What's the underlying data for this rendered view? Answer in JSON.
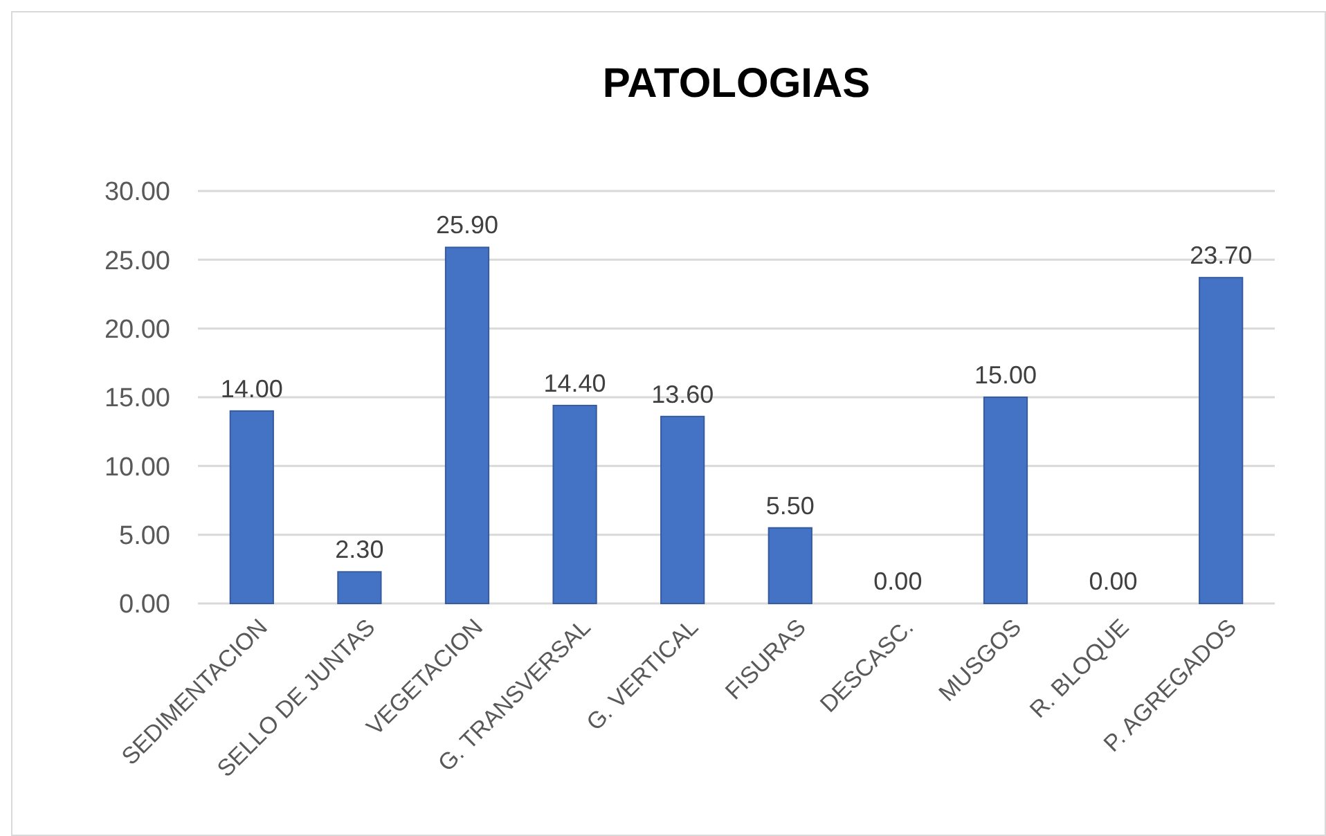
{
  "chart_data": {
    "type": "bar",
    "title": "PATOLOGIAS",
    "categories": [
      "SEDIMENTACION",
      "SELLO DE JUNTAS",
      "VEGETACION",
      "G. TRANSVERSAL",
      "G. VERTICAL",
      "FISURAS",
      "DESCASC.",
      "MUSGOS",
      "R. BLOQUE",
      "P. AGREGADOS"
    ],
    "values": [
      14.0,
      2.3,
      25.9,
      14.4,
      13.6,
      5.5,
      0.0,
      15.0,
      0.0,
      23.7
    ],
    "value_labels": [
      "14.00",
      "2.30",
      "25.90",
      "14.40",
      "13.60",
      "5.50",
      "0.00",
      "15.00",
      "0.00",
      "23.70"
    ],
    "color": "#4472c4",
    "ylim": [
      0,
      30
    ],
    "yticks": [
      {
        "value": 0,
        "label": "0.00"
      },
      {
        "value": 5,
        "label": "5.00"
      },
      {
        "value": 10,
        "label": "10.00"
      },
      {
        "value": 15,
        "label": "15.00"
      },
      {
        "value": 20,
        "label": "20.00"
      },
      {
        "value": 25,
        "label": "25.00"
      },
      {
        "value": 30,
        "label": "30.00"
      }
    ],
    "grid": "y"
  }
}
